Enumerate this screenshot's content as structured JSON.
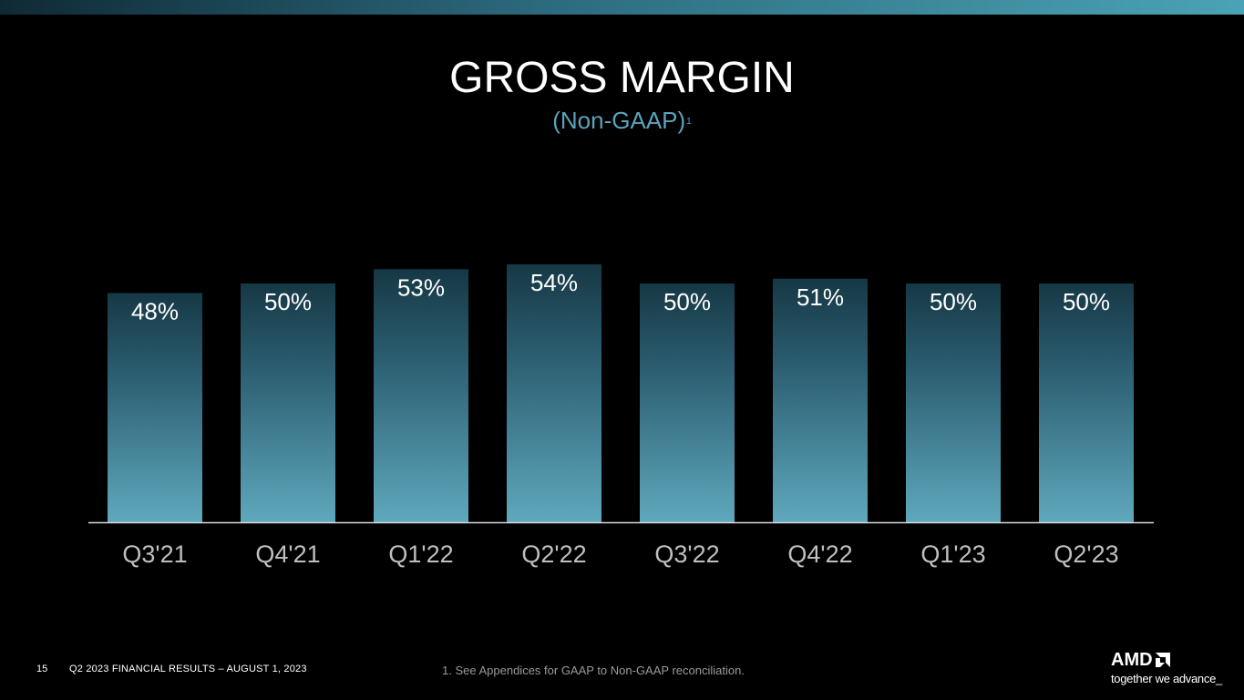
{
  "header": {
    "title": "GROSS MARGIN",
    "subtitle": "(Non-GAAP)",
    "subtitle_footnote_marker": "1"
  },
  "colors": {
    "bar_top": "#163845",
    "bar_bottom": "#5fa8bd",
    "subtitle": "#5ba3bd",
    "axis_line": "#d9d9d9",
    "category_label": "#bfbfbf",
    "accent_bar_right": "#4aa3b4"
  },
  "chart_data": {
    "type": "bar",
    "categories": [
      "Q3'21",
      "Q4'21",
      "Q1'22",
      "Q2'22",
      "Q3'22",
      "Q4'22",
      "Q1'23",
      "Q2'23"
    ],
    "values": [
      48,
      50,
      53,
      54,
      50,
      51,
      50,
      50
    ],
    "value_labels": [
      "48%",
      "50%",
      "53%",
      "54%",
      "50%",
      "51%",
      "50%",
      "50%"
    ],
    "unit": "%",
    "title": "GROSS MARGIN",
    "subtitle": "(Non-GAAP)",
    "xlabel": "",
    "ylabel": "",
    "grid": false,
    "legend": "none"
  },
  "footer": {
    "page_number": "15",
    "report_label": "Q2 2023 FINANCIAL RESULTS – AUGUST 1, 2023",
    "footnote": "1.  See Appendices for GAAP to Non-GAAP reconciliation."
  },
  "logo": {
    "wordmark": "AMD",
    "tagline": "together we advance_",
    "icon": "amd-arrow-icon"
  }
}
